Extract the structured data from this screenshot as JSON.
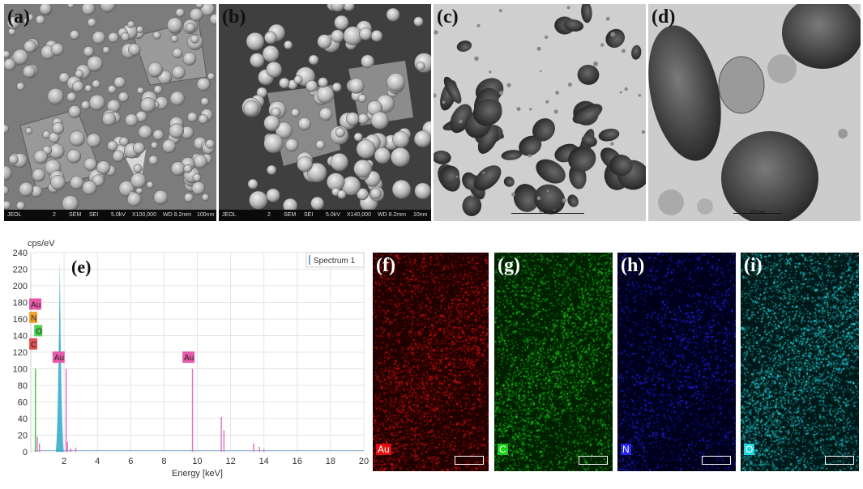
{
  "panels": {
    "a": {
      "label": "(a)",
      "bar": {
        "brand": "JEOL",
        "n": "2",
        "mode": "SEM",
        "det": "SEI",
        "kv": "5.0kV",
        "mag": "X100,000",
        "wd": "WD 8.2mm",
        "scale": "100nm"
      }
    },
    "b": {
      "label": "(b)",
      "bar": {
        "brand": "JEOL",
        "n": "2",
        "mode": "SEM",
        "det": "SEI",
        "kv": "5.0kV",
        "mag": "X140,000",
        "wd": "WD 8.2mm",
        "scale": "10nm"
      }
    },
    "c": {
      "label": "(c)",
      "scale": "100 nm"
    },
    "d": {
      "label": "(d)",
      "scale": "20 nm"
    },
    "e": {
      "label": "(e)"
    },
    "f": {
      "label": "(f)",
      "element": "Au",
      "color": "#e01010"
    },
    "g": {
      "label": "(g)",
      "element": "C",
      "color": "#19d019"
    },
    "h": {
      "label": "(h)",
      "element": "N",
      "color": "#2424f0"
    },
    "i": {
      "label": "(i)",
      "element": "O",
      "color": "#22d6dc"
    }
  },
  "chart_data": {
    "type": "line",
    "title": "",
    "ylabel": "cps/eV",
    "xlabel": "Energy [keV]",
    "xlim": [
      0,
      20
    ],
    "ylim": [
      0,
      240
    ],
    "xticks": [
      2,
      4,
      6,
      8,
      10,
      12,
      14,
      16,
      18,
      20
    ],
    "yticks": [
      0,
      20,
      40,
      60,
      80,
      100,
      120,
      140,
      160,
      180,
      200,
      220,
      240
    ],
    "grid": true,
    "legend": "top-right",
    "series": [
      {
        "name": "Spectrum 1",
        "color": "#7aa6c8"
      }
    ],
    "peaks": [
      {
        "energy": 0.28,
        "height": 100,
        "color": "#33cc33"
      },
      {
        "energy": 0.39,
        "height": 18,
        "color": "#e070c0"
      },
      {
        "energy": 0.52,
        "height": 10,
        "color": "#e070c0"
      },
      {
        "energy": 1.74,
        "height": 232,
        "color": "#2aa8c8"
      },
      {
        "energy": 2.12,
        "height": 100,
        "color": "#e070c0"
      },
      {
        "energy": 2.2,
        "height": 12,
        "color": "#e070c0"
      },
      {
        "energy": 2.4,
        "height": 4,
        "color": "#e070c0"
      },
      {
        "energy": 2.7,
        "height": 5,
        "color": "#e070c0"
      },
      {
        "energy": 9.71,
        "height": 100,
        "color": "#e070c0"
      },
      {
        "energy": 11.44,
        "height": 42,
        "color": "#e070c0"
      },
      {
        "energy": 11.6,
        "height": 26,
        "color": "#e070c0"
      },
      {
        "energy": 13.38,
        "height": 10,
        "color": "#e070c0"
      },
      {
        "energy": 13.73,
        "height": 6,
        "color": "#e070c0"
      },
      {
        "energy": 14.0,
        "height": 3,
        "color": "#e070c0"
      }
    ],
    "element_tags": [
      {
        "text": "Au",
        "energy": 0.1,
        "y": 177,
        "color": "#e85aa9"
      },
      {
        "text": "N",
        "energy": 0.1,
        "y": 161,
        "color": "#f0a030"
      },
      {
        "text": "O",
        "energy": 0.4,
        "y": 145,
        "color": "#50d050"
      },
      {
        "text": "C",
        "energy": 0.1,
        "y": 129,
        "color": "#e05050"
      },
      {
        "text": "Au",
        "energy": 1.5,
        "y": 113,
        "color": "#e85aa9"
      },
      {
        "text": "Au",
        "energy": 9.3,
        "y": 113,
        "color": "#e85aa9"
      }
    ]
  }
}
